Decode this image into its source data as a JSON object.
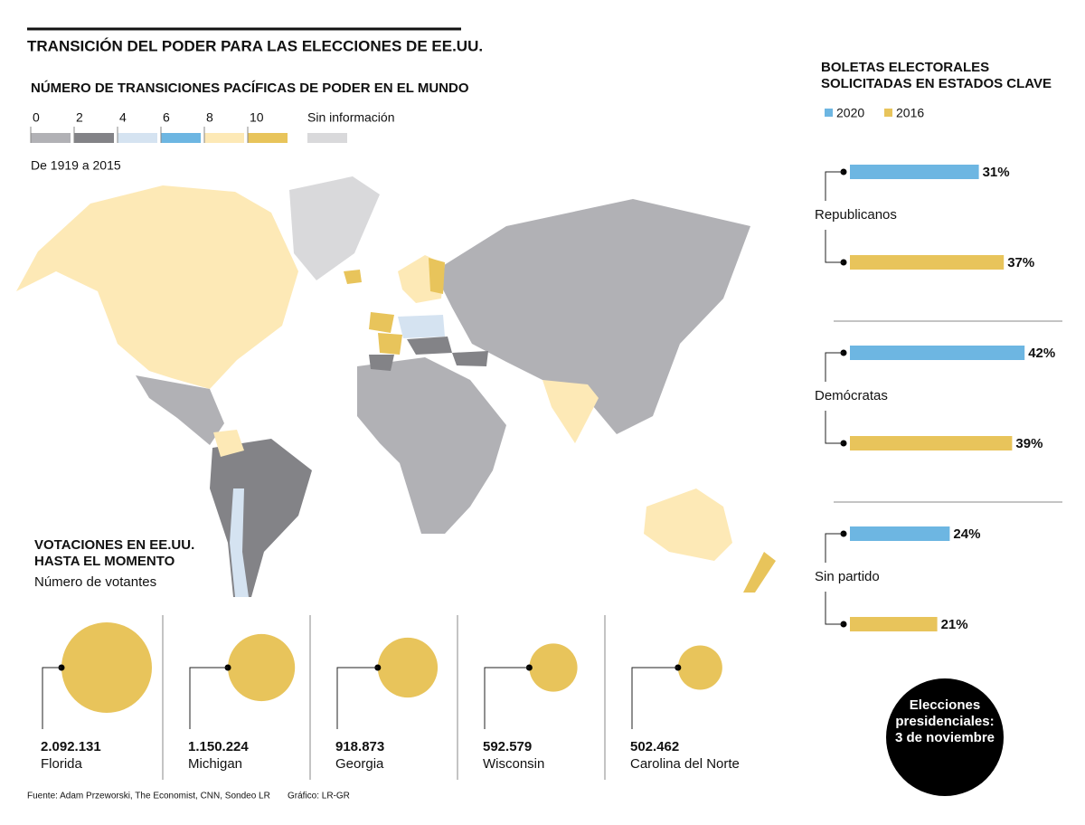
{
  "title": "TRANSICIÓN DEL PODER PARA LAS ELECCIONES DE EE.UU.",
  "map": {
    "title": "NÚMERO DE TRANSICIONES PACÍFICAS DE PODER EN EL MUNDO",
    "period": "De 1919 a 2015",
    "legend_ticks": [
      0,
      2,
      4,
      6,
      8,
      10
    ],
    "legend_colors": [
      "#b1b1b5",
      "#838387",
      "#d5e3f1",
      "#6db6e2",
      "#fde9b6",
      "#e8c45b"
    ],
    "no_data_label": "Sin información",
    "no_data_color": "#d9d9db"
  },
  "chart_data": [
    {
      "type": "bar",
      "orientation": "horizontal",
      "title": [
        "BOLETAS ELECTORALES",
        "SOLICITADAS EN ESTADOS CLAVE"
      ],
      "categories": [
        "Republicanos",
        "Demócratas",
        "Sin partido"
      ],
      "series": [
        {
          "name": "2020",
          "color": "#6db6e2",
          "values": [
            31,
            42,
            24
          ],
          "value_labels": [
            "31%",
            "42%",
            "24%"
          ]
        },
        {
          "name": "2016",
          "color": "#e8c45b",
          "values": [
            37,
            39,
            21
          ],
          "value_labels": [
            "37%",
            "39%",
            "21%"
          ]
        }
      ]
    },
    {
      "type": "bubble",
      "title": [
        "VOTACIONES EN EE.UU.",
        "HASTA EL MOMENTO"
      ],
      "subtitle": "Número de votantes",
      "categories": [
        "Florida",
        "Michigan",
        "Georgia",
        "Wisconsin",
        "Carolina del Norte"
      ],
      "values": [
        2092131,
        1150224,
        918873,
        592579,
        502462
      ],
      "value_labels": [
        "2.092.131",
        "1.150.224",
        "918.873",
        "592.579",
        "502.462"
      ],
      "color": "#e8c45b"
    }
  ],
  "badge": [
    "Elecciones",
    "presidenciales:",
    "3 de noviembre"
  ],
  "source": "Fuente:  Adam Przeworski, The Economist, CNN, Sondeo LR",
  "credit": "Gráfico: LR-GR"
}
